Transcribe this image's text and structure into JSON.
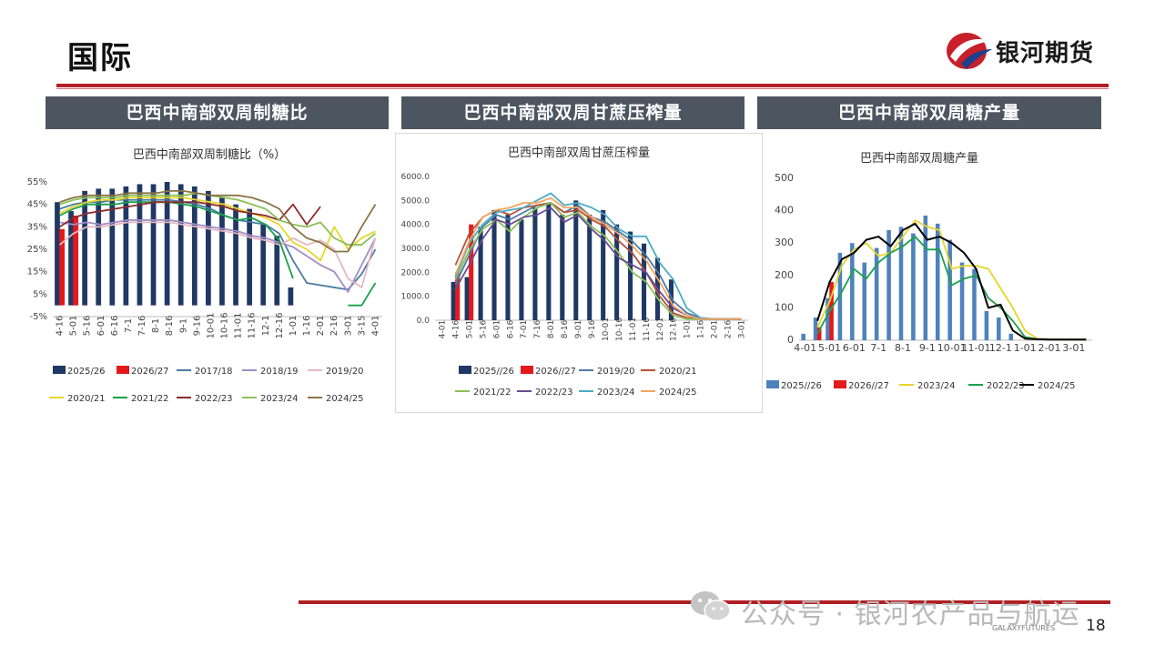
{
  "page": {
    "title": "国际",
    "brand_name": "银河期货",
    "footer_brand": "GALAXYFUTURES",
    "page_number": "18",
    "watermark_text": "公众号 · 银河农产品与航运",
    "colors": {
      "accent": "#b11e23",
      "header_bg": "#4d5660"
    }
  },
  "panels": [
    {
      "header": "巴西中南部双周制糖比"
    },
    {
      "header": "巴西中南部双周甘蔗压榨量"
    },
    {
      "header": "巴西中南部双周糖产量"
    }
  ],
  "chart_data": [
    {
      "type": "bar",
      "title": "巴西中南部双周制糖比（%）",
      "categories": [
        "4-16",
        "5-01",
        "5-16",
        "6-01",
        "6-16",
        "7-1",
        "7-16",
        "8-1",
        "8-16",
        "9-1",
        "9-16",
        "10-01",
        "10-16",
        "11-01",
        "11-16",
        "12-1",
        "12-16",
        "1-01",
        "1-16",
        "2-01",
        "2-16",
        "3-01",
        "3-15",
        "4-01"
      ],
      "yticks": [
        "-5%",
        "5%",
        "15%",
        "25%",
        "35%",
        "45%",
        "55%"
      ],
      "ylim": [
        -5,
        55
      ],
      "series": [
        {
          "name": "2025/26",
          "kind": "bar",
          "color": "#1f3864",
          "values": [
            46,
            42,
            51,
            52,
            52,
            53,
            54,
            54,
            55,
            54,
            53,
            51,
            48,
            45,
            43,
            36,
            31,
            8,
            null,
            null,
            null,
            null,
            null,
            null
          ]
        },
        {
          "name": "2026/27",
          "kind": "bar",
          "color": "#e31a1c",
          "values": [
            34,
            40,
            null,
            null,
            null,
            null,
            null,
            null,
            null,
            null,
            null,
            null,
            null,
            null,
            null,
            null,
            null,
            null,
            null,
            null,
            null,
            null,
            null,
            null
          ]
        },
        {
          "name": "2017/18",
          "kind": "line",
          "color": "#4a7ba6",
          "values": [
            43,
            45,
            46,
            46,
            47,
            47,
            47,
            47,
            47,
            46,
            45,
            43,
            40,
            38,
            37,
            36,
            32,
            20,
            10,
            9,
            8,
            7,
            14,
            25
          ]
        },
        {
          "name": "2018/19",
          "kind": "line",
          "color": "#a18cc7",
          "values": [
            37,
            36,
            37,
            36,
            37,
            38,
            38,
            38,
            38,
            37,
            36,
            35,
            34,
            33,
            31,
            30,
            28,
            26,
            22,
            18,
            15,
            6,
            18,
            30
          ]
        },
        {
          "name": "2019/20",
          "kind": "line",
          "color": "#e6b8c0",
          "values": [
            27,
            32,
            35,
            35,
            36,
            37,
            37,
            37,
            37,
            36,
            35,
            34,
            33,
            32,
            30,
            29,
            27,
            30,
            27,
            29,
            25,
            12,
            8,
            30
          ]
        },
        {
          "name": "2020/21",
          "kind": "line",
          "color": "#e6d52a",
          "values": [
            41,
            44,
            46,
            47,
            47,
            48,
            48,
            48,
            48,
            48,
            47,
            46,
            45,
            43,
            41,
            39,
            36,
            28,
            25,
            20,
            35,
            25,
            30,
            33
          ]
        },
        {
          "name": "2021/22",
          "kind": "line",
          "color": "#1aa04a",
          "values": [
            40,
            43,
            45,
            45,
            45,
            46,
            46,
            46,
            46,
            45,
            44,
            42,
            40,
            38,
            39,
            36,
            29,
            12,
            null,
            null,
            null,
            0,
            0,
            10
          ]
        },
        {
          "name": "2022/23",
          "kind": "line",
          "color": "#8b2b2b",
          "values": [
            35,
            39,
            41,
            42,
            43,
            44,
            45,
            46,
            46,
            46,
            46,
            45,
            44,
            42,
            41,
            40,
            38,
            45,
            36,
            44,
            null,
            null,
            null,
            null
          ]
        },
        {
          "name": "2023/24",
          "kind": "line",
          "color": "#8cc056",
          "values": [
            45,
            47,
            48,
            48,
            48,
            49,
            49,
            49,
            49,
            49,
            50,
            49,
            48,
            47,
            45,
            43,
            38,
            36,
            35,
            37,
            30,
            27,
            27,
            32
          ]
        },
        {
          "name": "2024/25",
          "kind": "line",
          "color": "#8a7444",
          "values": [
            46,
            48,
            49,
            49,
            49,
            50,
            50,
            50,
            51,
            51,
            50,
            49,
            49,
            49,
            48,
            46,
            43,
            35,
            30,
            28,
            24,
            24,
            35,
            45
          ]
        }
      ]
    },
    {
      "type": "bar",
      "title": "巴西中南部双周甘蔗压榨量",
      "categories": [
        "4-01",
        "4-16",
        "5-01",
        "5-16",
        "6-01",
        "6-16",
        "7-01",
        "7-16",
        "8-01",
        "8-16",
        "9-01",
        "9-16",
        "10-01",
        "10-16",
        "11-01",
        "11-16",
        "12-01",
        "12-16",
        "1-01",
        "1-16",
        "2-01",
        "2-16",
        "3-01"
      ],
      "yticks": [
        "0.0",
        "1000.0",
        "2000.0",
        "3000.0",
        "4000.0",
        "5000.0",
        "6000.0"
      ],
      "ylim": [
        0,
        6000
      ],
      "series": [
        {
          "name": "2025//26",
          "kind": "bar",
          "color": "#1f3864",
          "values": [
            null,
            1600,
            1800,
            3900,
            4600,
            4400,
            4200,
            4700,
            4900,
            4400,
            5000,
            4400,
            4600,
            4000,
            3700,
            3200,
            2600,
            1700,
            null,
            null,
            null,
            null,
            null
          ]
        },
        {
          "name": "2026//27",
          "kind": "bar",
          "color": "#e31a1c",
          "values": [
            null,
            2000,
            4000,
            null,
            null,
            null,
            null,
            null,
            null,
            null,
            null,
            null,
            null,
            null,
            null,
            null,
            null,
            null,
            null,
            null,
            null,
            null,
            null
          ]
        },
        {
          "name": "2019/20",
          "kind": "line",
          "color": "#4a7ba6",
          "values": [
            null,
            1500,
            2700,
            3900,
            4400,
            4200,
            4500,
            4800,
            4900,
            4500,
            4800,
            4300,
            4100,
            3700,
            3300,
            2700,
            1900,
            800,
            300,
            100,
            50,
            50,
            50
          ]
        },
        {
          "name": "2020/21",
          "kind": "line",
          "color": "#b5503a",
          "values": [
            null,
            2300,
            3600,
            4300,
            4600,
            4400,
            4700,
            4800,
            4900,
            4500,
            4600,
            4200,
            3900,
            3300,
            2800,
            2000,
            1000,
            300,
            100,
            50,
            50,
            50,
            50
          ]
        },
        {
          "name": "2021/22",
          "kind": "line",
          "color": "#8cc056",
          "values": [
            null,
            1700,
            2900,
            3800,
            4200,
            3700,
            4300,
            4700,
            4900,
            4300,
            4500,
            3900,
            3500,
            2800,
            2000,
            1600,
            800,
            200,
            50,
            50,
            50,
            50,
            50
          ]
        },
        {
          "name": "2022/23",
          "kind": "line",
          "color": "#6a4c93",
          "values": [
            null,
            1300,
            2300,
            3400,
            4200,
            4000,
            4300,
            4400,
            4700,
            4100,
            4400,
            3800,
            3300,
            2600,
            2300,
            2000,
            1200,
            500,
            200,
            50,
            50,
            50,
            50
          ]
        },
        {
          "name": "2023/24",
          "kind": "line",
          "color": "#4bacc6",
          "values": [
            null,
            1800,
            3200,
            4000,
            4500,
            4600,
            4700,
            5000,
            5300,
            4800,
            4900,
            4700,
            4400,
            3800,
            3500,
            3500,
            2400,
            1700,
            500,
            100,
            50,
            50,
            50
          ]
        },
        {
          "name": "2024/25",
          "kind": "line",
          "color": "#f4a460",
          "values": [
            null,
            1900,
            3300,
            4300,
            4600,
            4700,
            4900,
            4900,
            5100,
            4700,
            4700,
            4300,
            4000,
            3600,
            3100,
            2500,
            1600,
            600,
            200,
            50,
            50,
            50,
            50
          ]
        }
      ]
    },
    {
      "type": "bar",
      "title": "巴西中南部双周糖产量",
      "categories": [
        "4-01",
        "4-16",
        "5-01",
        "5-16",
        "6-01",
        "6-16",
        "7-1",
        "7-16",
        "8-1",
        "8-16",
        "9-1",
        "9-16",
        "10-01",
        "10-16",
        "11-01",
        "11-16",
        "12-1",
        "12-16",
        "1-01",
        "1-16",
        "2-01",
        "2-16",
        "3-01",
        "3-16"
      ],
      "xticks": [
        "4-01",
        "5-01",
        "6-01",
        "7-1",
        "8-1",
        "9-1",
        "10-01",
        "11-01",
        "12-1",
        "1-01",
        "2-01",
        "3-01"
      ],
      "yticks": [
        "0",
        "100",
        "200",
        "300",
        "400",
        "500"
      ],
      "ylim": [
        0,
        500
      ],
      "series": [
        {
          "name": "2025//26",
          "kind": "bar",
          "color": "#4f81bd",
          "values": [
            20,
            70,
            130,
            270,
            300,
            240,
            285,
            340,
            350,
            330,
            385,
            360,
            310,
            240,
            220,
            90,
            70,
            20,
            null,
            null,
            null,
            null,
            null,
            null
          ]
        },
        {
          "name": "2026//27",
          "kind": "bar",
          "color": "#e31a1c",
          "values": [
            null,
            40,
            180,
            null,
            null,
            null,
            null,
            null,
            null,
            null,
            null,
            null,
            null,
            null,
            null,
            null,
            null,
            null,
            null,
            null,
            null,
            null,
            null,
            null
          ]
        },
        {
          "name": "2023/24",
          "kind": "line",
          "color": "#e6d52a",
          "values": [
            null,
            40,
            120,
            230,
            280,
            300,
            260,
            270,
            320,
            370,
            350,
            340,
            220,
            230,
            230,
            220,
            160,
            100,
            30,
            5,
            3,
            2,
            2,
            2
          ]
        },
        {
          "name": "2022/23",
          "kind": "line",
          "color": "#1aa04a",
          "values": [
            null,
            20,
            90,
            150,
            220,
            190,
            240,
            270,
            290,
            320,
            280,
            280,
            170,
            190,
            200,
            130,
            100,
            60,
            10,
            3,
            2,
            2,
            2,
            2
          ]
        },
        {
          "name": "2024/25",
          "kind": "line",
          "color": "#000000",
          "values": [
            null,
            60,
            180,
            250,
            270,
            310,
            320,
            290,
            340,
            360,
            310,
            320,
            300,
            270,
            220,
            100,
            110,
            30,
            5,
            3,
            2,
            2,
            2,
            2
          ]
        }
      ]
    }
  ]
}
